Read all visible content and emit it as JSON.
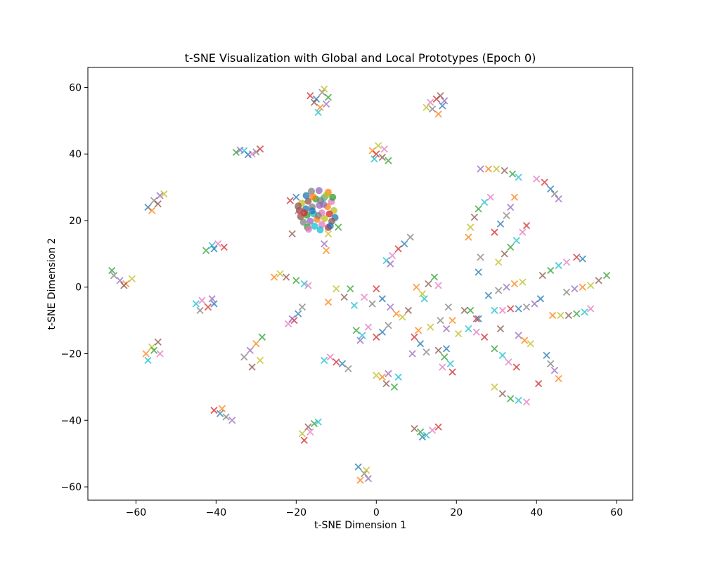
{
  "chart_data": {
    "type": "scatter",
    "title": "t-SNE Visualization with Global and Local Prototypes (Epoch 0)",
    "xlabel": "t-SNE Dimension 1",
    "ylabel": "t-SNE Dimension 2",
    "xlim": [
      -72,
      64
    ],
    "ylim": [
      -64,
      66
    ],
    "xticks": [
      -60,
      -40,
      -20,
      0,
      20,
      40,
      60
    ],
    "yticks": [
      -60,
      -40,
      -20,
      0,
      20,
      40,
      60
    ],
    "xtick_labels": [
      "−60",
      "−40",
      "−20",
      "0",
      "20",
      "40",
      "60"
    ],
    "ytick_labels": [
      "−60",
      "−40",
      "−20",
      "0",
      "20",
      "40",
      "60"
    ],
    "grid": false,
    "palette": [
      "#1f77b4",
      "#ff7f0e",
      "#2ca02c",
      "#d62728",
      "#9467bd",
      "#8c564b",
      "#e377c2",
      "#7f7f7f",
      "#bcbd22",
      "#17becf"
    ],
    "series": [
      {
        "marker": "o",
        "points": [
          [
            -17.5,
            27.5
          ],
          [
            -16.2,
            28.8
          ],
          [
            -14.3,
            29.0
          ],
          [
            -12.0,
            28.5
          ],
          [
            -18.6,
            25.2
          ],
          [
            -17.0,
            25.8
          ],
          [
            -15.1,
            26.5
          ],
          [
            -13.0,
            26.9
          ],
          [
            -11.2,
            25.7
          ],
          [
            -19.2,
            23.0
          ],
          [
            -17.6,
            23.5
          ],
          [
            -16.0,
            24.1
          ],
          [
            -14.2,
            24.6
          ],
          [
            -12.2,
            24.2
          ],
          [
            -10.6,
            23.0
          ],
          [
            -18.9,
            21.2
          ],
          [
            -17.3,
            21.6
          ],
          [
            -15.6,
            22.0
          ],
          [
            -13.6,
            22.3
          ],
          [
            -11.7,
            22.0
          ],
          [
            -10.3,
            20.9
          ],
          [
            -18.2,
            19.5
          ],
          [
            -16.5,
            19.8
          ],
          [
            -14.8,
            20.4
          ],
          [
            -12.9,
            20.6
          ],
          [
            -11.1,
            19.8
          ],
          [
            -17.2,
            18.0
          ],
          [
            -15.4,
            18.3
          ],
          [
            -13.6,
            18.8
          ],
          [
            -12.0,
            17.9
          ],
          [
            -16.0,
            22.9
          ],
          [
            -14.5,
            21.5
          ],
          [
            -13.2,
            24.9
          ],
          [
            -15.8,
            27.1
          ],
          [
            -12.6,
            27.5
          ],
          [
            -19.5,
            24.4
          ],
          [
            -10.9,
            27.0
          ],
          [
            -14.0,
            17.2
          ],
          [
            -16.9,
            17.4
          ],
          [
            -18.0,
            22.3
          ],
          [
            -11.5,
            18.4
          ],
          [
            -13.9,
            26.0
          ]
        ]
      },
      {
        "marker": "x",
        "points": [
          [
            -16.5,
            57.5
          ],
          [
            -15.0,
            56.5
          ],
          [
            -13.5,
            58.5
          ],
          [
            -12.5,
            55.0
          ],
          [
            -14.0,
            54.0
          ],
          [
            -13.0,
            59.5
          ],
          [
            -15.5,
            55.5
          ],
          [
            -12.0,
            57.0
          ],
          [
            -14.5,
            52.5
          ],
          [
            13.5,
            55.5
          ],
          [
            15.0,
            56.5
          ],
          [
            16.5,
            54.5
          ],
          [
            14.0,
            53.5
          ],
          [
            17.0,
            56.0
          ],
          [
            15.5,
            52.0
          ],
          [
            12.5,
            54.0
          ],
          [
            16.0,
            57.5
          ],
          [
            -35.0,
            40.5
          ],
          [
            -33.0,
            41.0
          ],
          [
            -31.0,
            40.0
          ],
          [
            -29.0,
            41.5
          ],
          [
            -32.0,
            39.8
          ],
          [
            -30.0,
            40.6
          ],
          [
            -34.0,
            41.2
          ],
          [
            -1.0,
            41.0
          ],
          [
            0.5,
            42.5
          ],
          [
            1.5,
            39.0
          ],
          [
            3.0,
            38.0
          ],
          [
            -0.5,
            38.5
          ],
          [
            2.0,
            41.5
          ],
          [
            0.0,
            40.0
          ],
          [
            -57.0,
            24.0
          ],
          [
            -55.5,
            26.0
          ],
          [
            -54.0,
            27.5
          ],
          [
            -56.0,
            23.0
          ],
          [
            -53.0,
            28.0
          ],
          [
            -54.5,
            25.0
          ],
          [
            -42.5,
            11.0
          ],
          [
            -41.0,
            12.5
          ],
          [
            -39.5,
            13.0
          ],
          [
            -38.0,
            12.0
          ],
          [
            -40.5,
            11.5
          ],
          [
            -65.5,
            3.5
          ],
          [
            -64.0,
            2.0
          ],
          [
            -62.5,
            1.0
          ],
          [
            -61.0,
            2.5
          ],
          [
            -63.0,
            0.5
          ],
          [
            -66.0,
            5.0
          ],
          [
            -45.0,
            -5.0
          ],
          [
            -43.5,
            -4.0
          ],
          [
            -42.0,
            -6.0
          ],
          [
            -40.5,
            -5.0
          ],
          [
            -44.0,
            -7.0
          ],
          [
            -41.0,
            -3.5
          ],
          [
            -57.5,
            -20.0
          ],
          [
            -56.0,
            -18.0
          ],
          [
            -54.5,
            -16.5
          ],
          [
            -55.5,
            -19.0
          ],
          [
            -57.0,
            -22.0
          ],
          [
            -54.0,
            -20.0
          ],
          [
            -40.5,
            -37.0
          ],
          [
            -39.0,
            -38.0
          ],
          [
            -37.5,
            -39.0
          ],
          [
            -36.0,
            -40.0
          ],
          [
            -38.5,
            -36.5
          ],
          [
            -18.5,
            -44.0
          ],
          [
            -17.0,
            -42.0
          ],
          [
            -15.5,
            -41.0
          ],
          [
            -14.5,
            -40.5
          ],
          [
            -16.5,
            -43.5
          ],
          [
            -18.0,
            -46.0
          ],
          [
            -4.5,
            -54.0
          ],
          [
            -3.0,
            -56.0
          ],
          [
            -2.0,
            -57.5
          ],
          [
            -4.0,
            -58.0
          ],
          [
            -2.5,
            -55.0
          ],
          [
            9.5,
            -42.5
          ],
          [
            11.0,
            -43.5
          ],
          [
            12.5,
            -44.5
          ],
          [
            14.0,
            -43.0
          ],
          [
            15.5,
            -42.0
          ],
          [
            11.5,
            -45.0
          ],
          [
            -33.0,
            -21.0
          ],
          [
            -31.5,
            -19.0
          ],
          [
            -30.0,
            -17.0
          ],
          [
            -29.0,
            -22.0
          ],
          [
            -31.0,
            -24.0
          ],
          [
            -28.5,
            -15.0
          ],
          [
            -13.0,
            -22.0
          ],
          [
            -11.5,
            -21.0
          ],
          [
            -10.0,
            -22.5
          ],
          [
            -8.5,
            -23.0
          ],
          [
            -7.0,
            -24.5
          ],
          [
            3.0,
            -26.0
          ],
          [
            1.5,
            -27.0
          ],
          [
            0.0,
            -26.5
          ],
          [
            2.5,
            -29.0
          ],
          [
            4.5,
            -30.0
          ],
          [
            5.5,
            -27.0
          ],
          [
            -22.0,
            -11.0
          ],
          [
            -20.5,
            -10.0
          ],
          [
            -19.5,
            -8.0
          ],
          [
            -18.5,
            -6.0
          ],
          [
            -21.0,
            -9.5
          ],
          [
            -25.5,
            3.0
          ],
          [
            -24.0,
            4.0
          ],
          [
            -22.5,
            3.0
          ],
          [
            -20.0,
            2.0
          ],
          [
            -18.0,
            1.0
          ],
          [
            -17.0,
            0.5
          ],
          [
            -21.5,
            26.0
          ],
          [
            -20.0,
            27.0
          ],
          [
            -19.5,
            23.0
          ],
          [
            -13.0,
            13.0
          ],
          [
            -12.5,
            11.0
          ],
          [
            -12.0,
            16.0
          ],
          [
            -21.0,
            16.0
          ],
          [
            -9.5,
            18.0
          ],
          [
            2.5,
            8.0
          ],
          [
            4.0,
            9.5
          ],
          [
            5.5,
            11.5
          ],
          [
            7.0,
            13.0
          ],
          [
            8.5,
            15.0
          ],
          [
            3.5,
            7.0
          ],
          [
            -12.0,
            -4.5
          ],
          [
            -10.0,
            -0.5
          ],
          [
            -8.0,
            -3.0
          ],
          [
            -6.5,
            -0.5
          ],
          [
            -5.5,
            -5.5
          ],
          [
            -3.0,
            -3.0
          ],
          [
            0.0,
            -0.5
          ],
          [
            1.5,
            -3.5
          ],
          [
            -1.0,
            -5.0
          ],
          [
            3.5,
            -6.0
          ],
          [
            5.0,
            -8.0
          ],
          [
            6.5,
            -9.0
          ],
          [
            8.0,
            -7.0
          ],
          [
            -5.0,
            -13.0
          ],
          [
            -3.5,
            -14.5
          ],
          [
            -2.0,
            -12.0
          ],
          [
            0.0,
            -15.0
          ],
          [
            1.5,
            -13.5
          ],
          [
            3.0,
            -11.5
          ],
          [
            -4.0,
            -16.0
          ],
          [
            10.0,
            0.0
          ],
          [
            11.5,
            -2.0
          ],
          [
            13.0,
            1.0
          ],
          [
            14.5,
            3.0
          ],
          [
            12.0,
            -3.5
          ],
          [
            15.5,
            0.5
          ],
          [
            9.5,
            -15.0
          ],
          [
            11.0,
            -17.0
          ],
          [
            12.5,
            -19.5
          ],
          [
            9.0,
            -20.0
          ],
          [
            10.5,
            -13.0
          ],
          [
            13.5,
            -12.0
          ],
          [
            15.5,
            -19.0
          ],
          [
            17.0,
            -21.0
          ],
          [
            18.5,
            -23.0
          ],
          [
            16.5,
            -24.0
          ],
          [
            19.0,
            -25.5
          ],
          [
            17.5,
            -18.5
          ],
          [
            16.0,
            -10.0
          ],
          [
            17.5,
            -12.5
          ],
          [
            19.0,
            -10.0
          ],
          [
            20.5,
            -14.0
          ],
          [
            22.0,
            -7.0
          ],
          [
            23.5,
            -7.0
          ],
          [
            23.0,
            -12.5
          ],
          [
            25.0,
            -13.5
          ],
          [
            27.0,
            -15.0
          ],
          [
            25.5,
            -9.5
          ],
          [
            18.0,
            -6.0
          ],
          [
            26.0,
            35.5
          ],
          [
            28.0,
            35.5
          ],
          [
            30.0,
            35.5
          ],
          [
            32.0,
            35.0
          ],
          [
            34.0,
            34.0
          ],
          [
            35.5,
            33.0
          ],
          [
            40.0,
            32.5
          ],
          [
            42.0,
            31.5
          ],
          [
            43.5,
            29.5
          ],
          [
            44.5,
            28.0
          ],
          [
            45.5,
            26.5
          ],
          [
            23.0,
            15.0
          ],
          [
            23.5,
            18.0
          ],
          [
            24.5,
            21.0
          ],
          [
            25.5,
            23.5
          ],
          [
            27.0,
            25.5
          ],
          [
            28.5,
            27.0
          ],
          [
            29.5,
            16.5
          ],
          [
            31.0,
            19.0
          ],
          [
            32.5,
            21.5
          ],
          [
            33.5,
            24.0
          ],
          [
            34.5,
            27.0
          ],
          [
            30.5,
            7.5
          ],
          [
            32.0,
            10.0
          ],
          [
            33.5,
            12.0
          ],
          [
            35.0,
            14.0
          ],
          [
            36.5,
            16.5
          ],
          [
            37.5,
            18.5
          ],
          [
            28.0,
            -2.5
          ],
          [
            30.5,
            -1.0
          ],
          [
            32.5,
            0.0
          ],
          [
            34.5,
            1.0
          ],
          [
            36.5,
            1.5
          ],
          [
            41.5,
            3.5
          ],
          [
            43.5,
            5.0
          ],
          [
            45.5,
            6.5
          ],
          [
            47.5,
            7.5
          ],
          [
            50.0,
            9.0
          ],
          [
            51.5,
            8.5
          ],
          [
            47.5,
            -1.5
          ],
          [
            49.5,
            -0.5
          ],
          [
            51.5,
            0.0
          ],
          [
            53.5,
            0.5
          ],
          [
            55.5,
            2.0
          ],
          [
            57.5,
            3.5
          ],
          [
            29.5,
            -7.0
          ],
          [
            31.5,
            -7.0
          ],
          [
            33.5,
            -6.5
          ],
          [
            35.5,
            -6.5
          ],
          [
            37.5,
            -6.0
          ],
          [
            39.5,
            -5.0
          ],
          [
            44.0,
            -8.5
          ],
          [
            46.0,
            -8.5
          ],
          [
            48.0,
            -8.5
          ],
          [
            50.0,
            -8.0
          ],
          [
            52.0,
            -7.5
          ],
          [
            53.5,
            -6.5
          ],
          [
            25.0,
            -9.5
          ],
          [
            25.5,
            4.5
          ],
          [
            26.0,
            9.0
          ],
          [
            35.5,
            -14.5
          ],
          [
            37.0,
            -16.0
          ],
          [
            38.5,
            -17.0
          ],
          [
            31.0,
            -12.5
          ],
          [
            29.5,
            -18.5
          ],
          [
            31.5,
            -20.5
          ],
          [
            33.0,
            -22.5
          ],
          [
            35.0,
            -24.0
          ],
          [
            42.5,
            -20.5
          ],
          [
            43.5,
            -23.0
          ],
          [
            44.5,
            -25.0
          ],
          [
            45.5,
            -27.5
          ],
          [
            29.5,
            -30.0
          ],
          [
            31.5,
            -32.0
          ],
          [
            33.5,
            -33.5
          ],
          [
            35.5,
            -34.0
          ],
          [
            37.5,
            -34.5
          ],
          [
            40.5,
            -29.0
          ],
          [
            41.0,
            -3.5
          ]
        ]
      }
    ]
  }
}
